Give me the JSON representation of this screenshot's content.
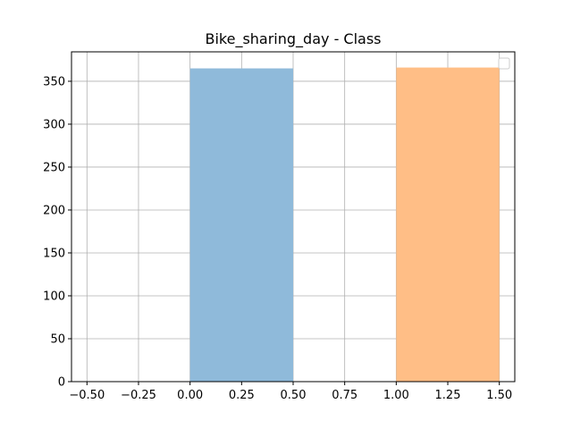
{
  "chart_data": {
    "type": "bar",
    "title": "Bike_sharing_day - Class",
    "xlabel": "",
    "ylabel": "",
    "xlim": [
      -0.575,
      1.575
    ],
    "ylim": [
      0,
      384.3
    ],
    "grid": true,
    "legend": "top-right, empty",
    "x_ticks": [
      -0.5,
      -0.25,
      0.0,
      0.25,
      0.5,
      0.75,
      1.0,
      1.25,
      1.5
    ],
    "x_tick_labels": [
      "−0.50",
      "−0.25",
      "0.00",
      "0.25",
      "0.50",
      "0.75",
      "1.00",
      "1.25",
      "1.50"
    ],
    "y_ticks": [
      0,
      50,
      100,
      150,
      200,
      250,
      300,
      350
    ],
    "y_tick_labels": [
      "0",
      "50",
      "100",
      "150",
      "200",
      "250",
      "300",
      "350"
    ],
    "bars": [
      {
        "x_start": 0.0,
        "x_end": 0.5,
        "value": 365,
        "color": "#8fbada"
      },
      {
        "x_start": 1.0,
        "x_end": 1.5,
        "value": 366,
        "color": "#ffbe86"
      }
    ]
  }
}
